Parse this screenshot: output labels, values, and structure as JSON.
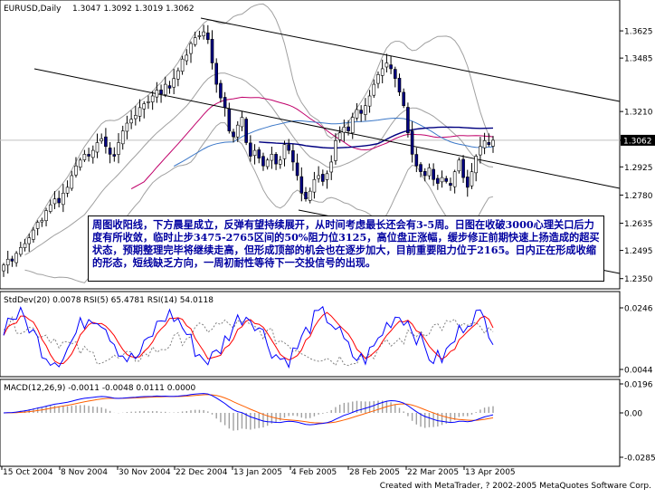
{
  "chart_data": [
    {
      "type": "candlestick",
      "title": "EURUSD,Daily",
      "ohlc_header": "1.3047 1.3092 1.3019 1.3062",
      "last_price": "1.3062",
      "ylim": [
        1.233,
        1.37
      ],
      "y_ticks": [
        "1.3625",
        "1.3485",
        "1.3210",
        "1.3062",
        "1.2925",
        "1.2780",
        "1.2635",
        "1.2495",
        "1.2350"
      ],
      "x_tick_labels": [
        "15 Oct 2004",
        "8 Nov 2004",
        "30 Nov 2004",
        "22 Dec 2004",
        "13 Jan 2005",
        "4 Feb 2005",
        "28 Feb 2005",
        "22 Mar 2005",
        "13 Apr 2005"
      ],
      "closes": [
        1.242,
        1.245,
        1.244,
        1.248,
        1.251,
        1.253,
        1.256,
        1.26,
        1.264,
        1.265,
        1.27,
        1.273,
        1.276,
        1.274,
        1.279,
        1.282,
        1.288,
        1.293,
        1.296,
        1.299,
        1.298,
        1.301,
        1.305,
        1.307,
        1.303,
        1.299,
        1.298,
        1.305,
        1.311,
        1.315,
        1.317,
        1.319,
        1.323,
        1.325,
        1.326,
        1.329,
        1.332,
        1.33,
        1.335,
        1.333,
        1.338,
        1.342,
        1.348,
        1.35,
        1.356,
        1.359,
        1.36,
        1.362,
        1.358,
        1.346,
        1.335,
        1.328,
        1.323,
        1.311,
        1.308,
        1.314,
        1.318,
        1.305,
        1.298,
        1.301,
        1.297,
        1.293,
        1.296,
        1.299,
        1.294,
        1.296,
        1.304,
        1.301,
        1.295,
        1.288,
        1.279,
        1.276,
        1.28,
        1.286,
        1.288,
        1.285,
        1.289,
        1.295,
        1.306,
        1.31,
        1.313,
        1.311,
        1.318,
        1.322,
        1.32,
        1.324,
        1.329,
        1.335,
        1.34,
        1.343,
        1.346,
        1.343,
        1.338,
        1.331,
        1.324,
        1.31,
        1.299,
        1.293,
        1.29,
        1.288,
        1.292,
        1.286,
        1.284,
        1.287,
        1.285,
        1.283,
        1.29,
        1.296,
        1.287,
        1.282,
        1.29,
        1.298,
        1.303,
        1.306,
        1.304,
        1.3062
      ]
    },
    {
      "type": "line",
      "title": "StdDev(20) 0.0078 RSI(5) 65.4781 RSI(14) 54.0118",
      "y_ticks": [
        "0.0246",
        "0.0044"
      ]
    },
    {
      "type": "bar",
      "title": "MACD(12,26,9) -0.0011 -0.0048 0.0111 0.0000",
      "y_ticks": [
        "0.0196",
        "0.00",
        "-0.0285"
      ]
    }
  ],
  "annotation": "周图收阳线，下方晨星成立，反弹有望持续展开，从时间考虑最长还会有3-5周。日图在收破3000心理关口后力度有所收敛，临时止步3475-2765区间的50%阻力位3125，高位盘正涨幅，缓步修正前期快速上扬造成的超买状态，预期整理完毕将继续走高，但形成顶部的机会也在逐步加大，目前重要阻力位于2165。日内正在形成收缩的形态，短线缺乏方向，一周初耐性等待下一交投信号的出现。",
  "footer": "Created with MetaTrader, ? 2002-2005 MetaQuotes Software Corp.",
  "colors": {
    "up_candle": "#ffffff",
    "down_candle": "#000080",
    "ma_pink": "#c0006a",
    "ma_blue": "#3c78c8",
    "ma_navy": "#000080",
    "bollinger": "#a0a0a0",
    "rsi_blue": "#0000ff",
    "rsi_red": "#ff0000",
    "macd_blue": "#0000ff",
    "macd_signal": "#ff6000",
    "histogram": "#a0a0a0"
  }
}
